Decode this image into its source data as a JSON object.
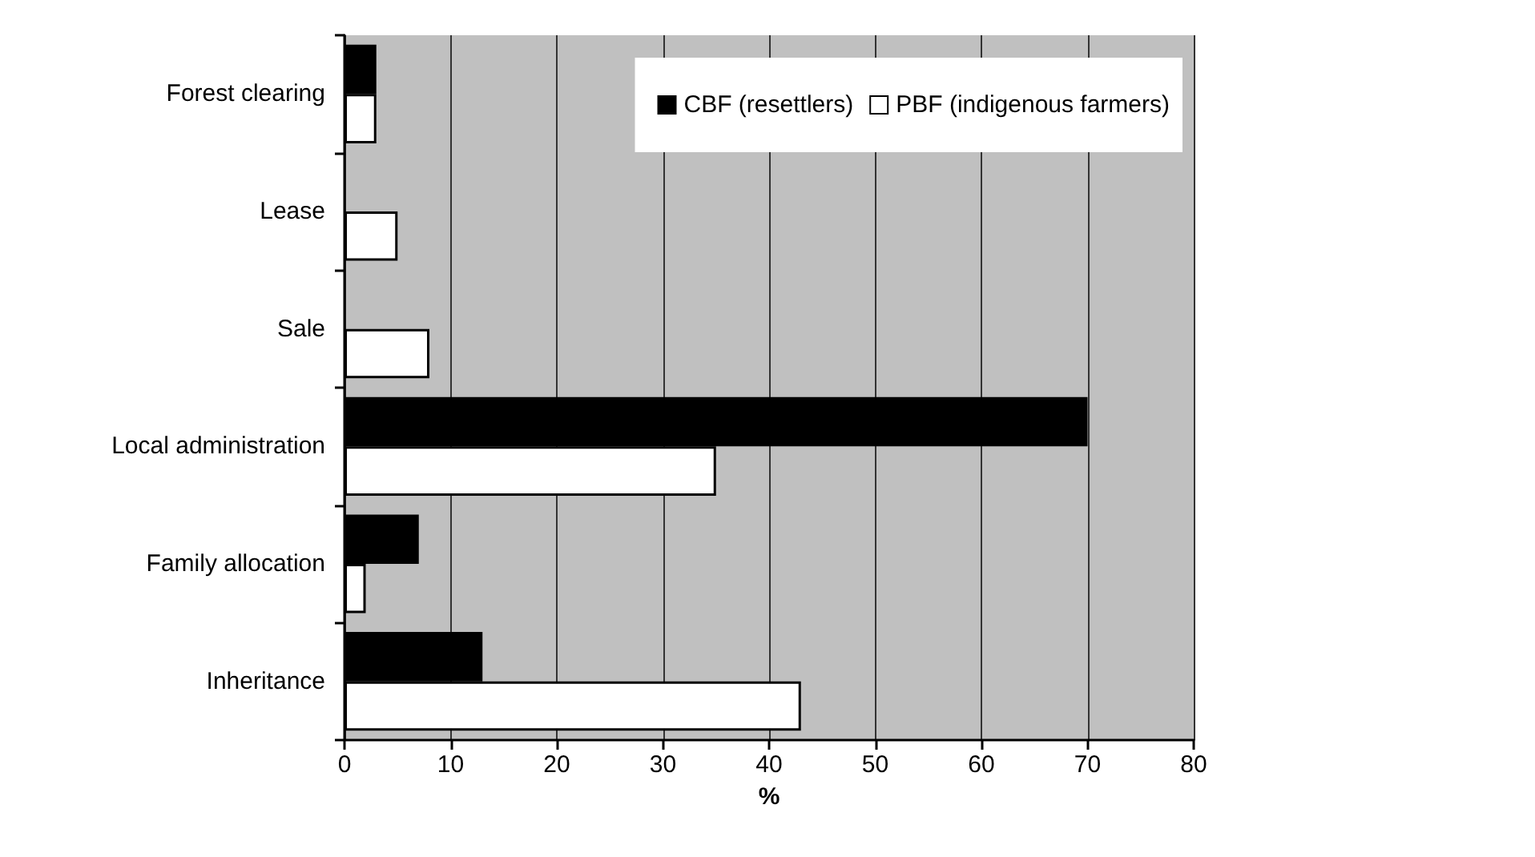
{
  "chart_data": {
    "type": "bar",
    "orientation": "horizontal",
    "xlabel": "%",
    "categories": [
      "Forest clearing",
      "Lease",
      "Sale",
      "Local administration",
      "Family allocation",
      "Inheritance"
    ],
    "series": [
      {
        "name": "CBF (resettlers)",
        "color": "#000000",
        "values": [
          3,
          null,
          null,
          70,
          7,
          13
        ]
      },
      {
        "name": "PBF (indigenous farmers)",
        "color": "#ffffff",
        "values": [
          3,
          5,
          8,
          35,
          2,
          43
        ]
      }
    ],
    "xlim": [
      0,
      80
    ],
    "xticks": [
      0,
      10,
      20,
      30,
      40,
      50,
      60,
      70,
      80
    ],
    "grid": "x",
    "legend": "top right"
  }
}
